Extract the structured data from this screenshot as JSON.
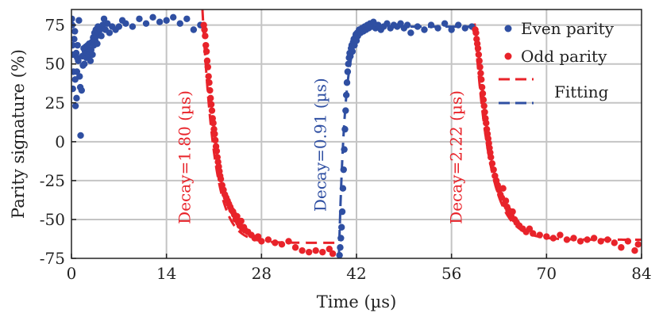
{
  "chart_data": {
    "type": "scatter",
    "title": "",
    "xlabel": "Time (µs)",
    "ylabel": "Parity signature (%)",
    "xlim": [
      0,
      84
    ],
    "ylim": [
      -75,
      85
    ],
    "xticks": [
      "0",
      "14",
      "28",
      "42",
      "56",
      "70",
      "84"
    ],
    "yticks": [
      "75",
      "50",
      "25",
      "0",
      "-25",
      "-50",
      "-75"
    ],
    "grid": true,
    "legend_position": "top-right",
    "colors": {
      "even": "#2f4fa2",
      "odd": "#e8232a"
    },
    "legend": [
      {
        "label": "Even parity",
        "marker": "dot",
        "color": "#2f4fa2"
      },
      {
        "label": "Odd parity",
        "marker": "dot",
        "color": "#e8232a"
      },
      {
        "label": "Fitting",
        "marker": "dashes",
        "colors": [
          "#e8232a",
          "#2f4fa2"
        ]
      }
    ],
    "annotations": [
      {
        "text": "Decay=1.80 (µs)",
        "color": "#e8232a",
        "x": 17.5,
        "y": -10
      },
      {
        "text": "Decay=0.91 (µs)",
        "color": "#2f4fa2",
        "x": 37.5,
        "y": -2
      },
      {
        "text": "Decay=2.22 (µs)",
        "color": "#e8232a",
        "x": 57.5,
        "y": -10
      }
    ],
    "series": [
      {
        "name": "Even parity",
        "color": "#2f4fa2",
        "points": [
          [
            0.05,
            79
          ],
          [
            0.1,
            75
          ],
          [
            0.15,
            62
          ],
          [
            0.2,
            34
          ],
          [
            0.25,
            56
          ],
          [
            0.3,
            45
          ],
          [
            0.4,
            66
          ],
          [
            0.5,
            71
          ],
          [
            0.55,
            40
          ],
          [
            0.6,
            23
          ],
          [
            0.7,
            57
          ],
          [
            0.75,
            28
          ],
          [
            0.8,
            45
          ],
          [
            0.85,
            54
          ],
          [
            0.9,
            62
          ],
          [
            1.0,
            52
          ],
          [
            1.1,
            78
          ],
          [
            1.2,
            42
          ],
          [
            1.3,
            35
          ],
          [
            1.35,
            4
          ],
          [
            1.5,
            33
          ],
          [
            1.6,
            55
          ],
          [
            1.7,
            49
          ],
          [
            1.8,
            60
          ],
          [
            1.9,
            50
          ],
          [
            2.0,
            58
          ],
          [
            2.1,
            61
          ],
          [
            2.2,
            54
          ],
          [
            2.3,
            57
          ],
          [
            2.4,
            62
          ],
          [
            2.5,
            55
          ],
          [
            2.6,
            63
          ],
          [
            2.7,
            58
          ],
          [
            2.8,
            52
          ],
          [
            2.9,
            59
          ],
          [
            3.0,
            64
          ],
          [
            3.1,
            56
          ],
          [
            3.2,
            67
          ],
          [
            3.3,
            62
          ],
          [
            3.4,
            70
          ],
          [
            3.5,
            65
          ],
          [
            3.6,
            72
          ],
          [
            3.7,
            68
          ],
          [
            3.8,
            63
          ],
          [
            3.9,
            74
          ],
          [
            4.0,
            70
          ],
          [
            4.2,
            72
          ],
          [
            4.4,
            68
          ],
          [
            4.6,
            75
          ],
          [
            4.8,
            79
          ],
          [
            5.0,
            72
          ],
          [
            5.3,
            76
          ],
          [
            5.6,
            70
          ],
          [
            6.0,
            74
          ],
          [
            6.5,
            72
          ],
          [
            7.0,
            74
          ],
          [
            7.5,
            78
          ],
          [
            8.0,
            76
          ],
          [
            9.0,
            74
          ],
          [
            10.0,
            79
          ],
          [
            11.0,
            76
          ],
          [
            12.0,
            80
          ],
          [
            13.0,
            77
          ],
          [
            14.0,
            78
          ],
          [
            15.0,
            80
          ],
          [
            16.0,
            76
          ],
          [
            17.0,
            79
          ],
          [
            18.0,
            72
          ],
          [
            19.0,
            75
          ],
          [
            39.5,
            -73
          ],
          [
            39.6,
            -68
          ],
          [
            39.7,
            -62
          ],
          [
            39.8,
            -55
          ],
          [
            39.9,
            -45
          ],
          [
            40.0,
            -30
          ],
          [
            40.1,
            -18
          ],
          [
            40.2,
            -5
          ],
          [
            40.3,
            8
          ],
          [
            40.4,
            20
          ],
          [
            40.5,
            30
          ],
          [
            40.6,
            38
          ],
          [
            40.7,
            45
          ],
          [
            40.8,
            50
          ],
          [
            40.9,
            54
          ],
          [
            41.0,
            57
          ],
          [
            41.1,
            55
          ],
          [
            41.2,
            60
          ],
          [
            41.3,
            62
          ],
          [
            41.4,
            58
          ],
          [
            41.5,
            64
          ],
          [
            41.6,
            66
          ],
          [
            41.7,
            62
          ],
          [
            41.8,
            67
          ],
          [
            41.9,
            69
          ],
          [
            42.0,
            65
          ],
          [
            42.1,
            70
          ],
          [
            42.2,
            68
          ],
          [
            42.4,
            72
          ],
          [
            42.6,
            70
          ],
          [
            42.8,
            73
          ],
          [
            43.0,
            71
          ],
          [
            43.2,
            74
          ],
          [
            43.4,
            72
          ],
          [
            43.6,
            75
          ],
          [
            43.8,
            73
          ],
          [
            44.0,
            76
          ],
          [
            44.2,
            74
          ],
          [
            44.5,
            77
          ],
          [
            44.8,
            73
          ],
          [
            45.2,
            75
          ],
          [
            45.6,
            72
          ],
          [
            46.0,
            74
          ],
          [
            46.5,
            76
          ],
          [
            47.0,
            73
          ],
          [
            47.5,
            75
          ],
          [
            48.0,
            74
          ],
          [
            48.5,
            76
          ],
          [
            49.0,
            73
          ],
          [
            49.5,
            75
          ],
          [
            50.0,
            70
          ],
          [
            51.0,
            74
          ],
          [
            52.0,
            72
          ],
          [
            53.0,
            75
          ],
          [
            54.0,
            73
          ],
          [
            55.0,
            76
          ],
          [
            56.0,
            72
          ],
          [
            57.0,
            75
          ],
          [
            58.0,
            73
          ],
          [
            59.0,
            74
          ]
        ]
      },
      {
        "name": "Odd parity",
        "color": "#e8232a",
        "points": [
          [
            19.5,
            75
          ],
          [
            19.6,
            72
          ],
          [
            19.7,
            68
          ],
          [
            19.8,
            62
          ],
          [
            19.9,
            58
          ],
          [
            20.0,
            52
          ],
          [
            20.1,
            48
          ],
          [
            20.2,
            42
          ],
          [
            20.3,
            38
          ],
          [
            20.4,
            33
          ],
          [
            20.5,
            28
          ],
          [
            20.6,
            24
          ],
          [
            20.7,
            20
          ],
          [
            20.8,
            15
          ],
          [
            20.9,
            12
          ],
          [
            21.0,
            8
          ],
          [
            21.1,
            5
          ],
          [
            21.2,
            1
          ],
          [
            21.3,
            -3
          ],
          [
            21.4,
            -6
          ],
          [
            21.5,
            -10
          ],
          [
            21.6,
            -13
          ],
          [
            21.7,
            -16
          ],
          [
            21.8,
            -19
          ],
          [
            21.9,
            -22
          ],
          [
            22.0,
            -24
          ],
          [
            22.2,
            -28
          ],
          [
            22.4,
            -31
          ],
          [
            22.6,
            -34
          ],
          [
            22.8,
            -36
          ],
          [
            23.0,
            -38
          ],
          [
            23.2,
            -40
          ],
          [
            23.4,
            -42
          ],
          [
            23.6,
            -44
          ],
          [
            23.8,
            -45
          ],
          [
            24.0,
            -47
          ],
          [
            24.2,
            -50
          ],
          [
            24.4,
            -48
          ],
          [
            24.6,
            -52
          ],
          [
            24.8,
            -54
          ],
          [
            25.0,
            -51
          ],
          [
            25.2,
            -56
          ],
          [
            25.4,
            -55
          ],
          [
            25.6,
            -57
          ],
          [
            26.0,
            -58
          ],
          [
            26.5,
            -60
          ],
          [
            27.0,
            -62
          ],
          [
            27.5,
            -61
          ],
          [
            28.0,
            -64
          ],
          [
            29.0,
            -63
          ],
          [
            30.0,
            -65
          ],
          [
            31.0,
            -66
          ],
          [
            32.0,
            -64
          ],
          [
            33.0,
            -68
          ],
          [
            34.0,
            -70
          ],
          [
            35.0,
            -71
          ],
          [
            36.0,
            -70
          ],
          [
            37.0,
            -71
          ],
          [
            38.0,
            -69
          ],
          [
            38.5,
            -72
          ],
          [
            59.5,
            72
          ],
          [
            59.6,
            70
          ],
          [
            59.7,
            66
          ],
          [
            59.8,
            63
          ],
          [
            59.9,
            60
          ],
          [
            60.0,
            56
          ],
          [
            60.1,
            52
          ],
          [
            60.2,
            48
          ],
          [
            60.3,
            44
          ],
          [
            60.4,
            40
          ],
          [
            60.5,
            35
          ],
          [
            60.6,
            31
          ],
          [
            60.7,
            27
          ],
          [
            60.8,
            23
          ],
          [
            60.9,
            19
          ],
          [
            61.0,
            15
          ],
          [
            61.1,
            12
          ],
          [
            61.2,
            8
          ],
          [
            61.3,
            5
          ],
          [
            61.4,
            2
          ],
          [
            61.5,
            -1
          ],
          [
            61.6,
            -4
          ],
          [
            61.7,
            -7
          ],
          [
            61.8,
            -10
          ],
          [
            62.0,
            -14
          ],
          [
            62.2,
            -18
          ],
          [
            62.4,
            -22
          ],
          [
            62.6,
            -25
          ],
          [
            62.8,
            -28
          ],
          [
            63.0,
            -31
          ],
          [
            63.2,
            -34
          ],
          [
            63.4,
            -36
          ],
          [
            63.6,
            -30
          ],
          [
            63.8,
            -40
          ],
          [
            64.0,
            -38
          ],
          [
            64.2,
            -42
          ],
          [
            64.4,
            -44
          ],
          [
            64.6,
            -46
          ],
          [
            64.8,
            -48
          ],
          [
            65.0,
            -45
          ],
          [
            65.3,
            -50
          ],
          [
            65.6,
            -52
          ],
          [
            66.0,
            -54
          ],
          [
            66.5,
            -56
          ],
          [
            67.0,
            -58
          ],
          [
            67.5,
            -56
          ],
          [
            68.0,
            -59
          ],
          [
            69.0,
            -60
          ],
          [
            70.0,
            -61
          ],
          [
            71.0,
            -62
          ],
          [
            72.0,
            -60
          ],
          [
            73.0,
            -63
          ],
          [
            74.0,
            -62
          ],
          [
            75.0,
            -64
          ],
          [
            76.0,
            -63
          ],
          [
            77.0,
            -62
          ],
          [
            78.0,
            -64
          ],
          [
            79.0,
            -63
          ],
          [
            80.0,
            -65
          ],
          [
            81.0,
            -68
          ],
          [
            82.0,
            -64
          ],
          [
            83.0,
            -70
          ],
          [
            83.5,
            -66
          ]
        ]
      }
    ],
    "fits": [
      {
        "color": "#e8232a",
        "segment": "odd-decay-1",
        "start": 19.3,
        "end": 39.0,
        "y0": 85,
        "y_inf": -65,
        "tau": 1.8
      },
      {
        "color": "#2f4fa2",
        "segment": "even-decay",
        "start": 39.4,
        "end": 59.3,
        "y0": -75,
        "y_inf": 74,
        "tau": 0.91
      },
      {
        "color": "#e8232a",
        "segment": "odd-decay-2",
        "start": 59.4,
        "end": 84.0,
        "y0": 76,
        "y_inf": -63,
        "tau": 2.22
      }
    ]
  }
}
